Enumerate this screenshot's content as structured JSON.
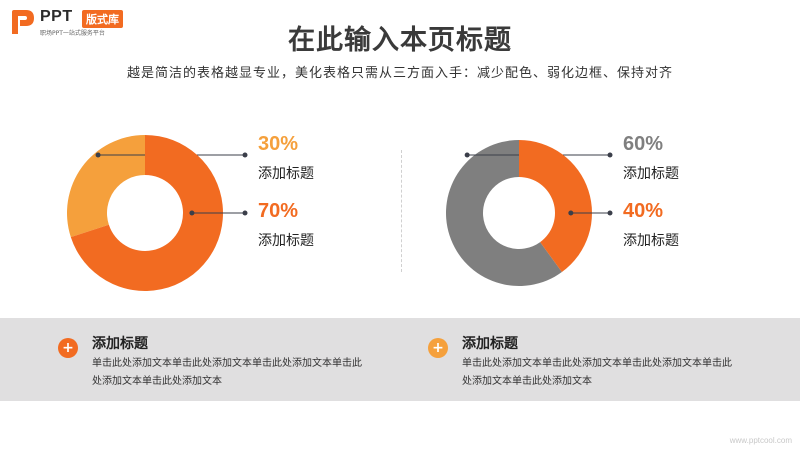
{
  "brand": {
    "name": "PPT",
    "badge": "版式库",
    "tagline": "职场PPT一站式服务平台"
  },
  "header": {
    "title": "在此输入本页标题",
    "subtitle": "越是简洁的表格越显专业，美化表格只需从三方面入手：减少配色、弱化边框、保持对齐"
  },
  "colors": {
    "accent_orange": "#f26b21",
    "light_orange": "#f5a03c",
    "gray": "#7f7f7f",
    "band": "#e0dfe0"
  },
  "chart_data": [
    {
      "type": "pie",
      "donut": true,
      "slices": [
        {
          "label": "添加标题",
          "value": 30,
          "display": "30%",
          "color": "#f5a03c"
        },
        {
          "label": "添加标题",
          "value": 70,
          "display": "70%",
          "color": "#f26b21"
        }
      ]
    },
    {
      "type": "pie",
      "donut": true,
      "slices": [
        {
          "label": "添加标题",
          "value": 60,
          "display": "60%",
          "color": "#7f7f7f"
        },
        {
          "label": "添加标题",
          "value": 40,
          "display": "40%",
          "color": "#f26b21"
        }
      ]
    }
  ],
  "features": [
    {
      "icon": "plus-icon",
      "icon_glyph": "+",
      "title": "添加标题",
      "body": "单击此处添加文本单击此处添加文本单击此处添加文本单击此处添加文本单击此处添加文本"
    },
    {
      "icon": "plus-icon",
      "icon_glyph": "+",
      "title": "添加标题",
      "body": "单击此处添加文本单击此处添加文本单击此处添加文本单击此处添加文本单击此处添加文本"
    }
  ],
  "watermark": "www.pptcool.com"
}
